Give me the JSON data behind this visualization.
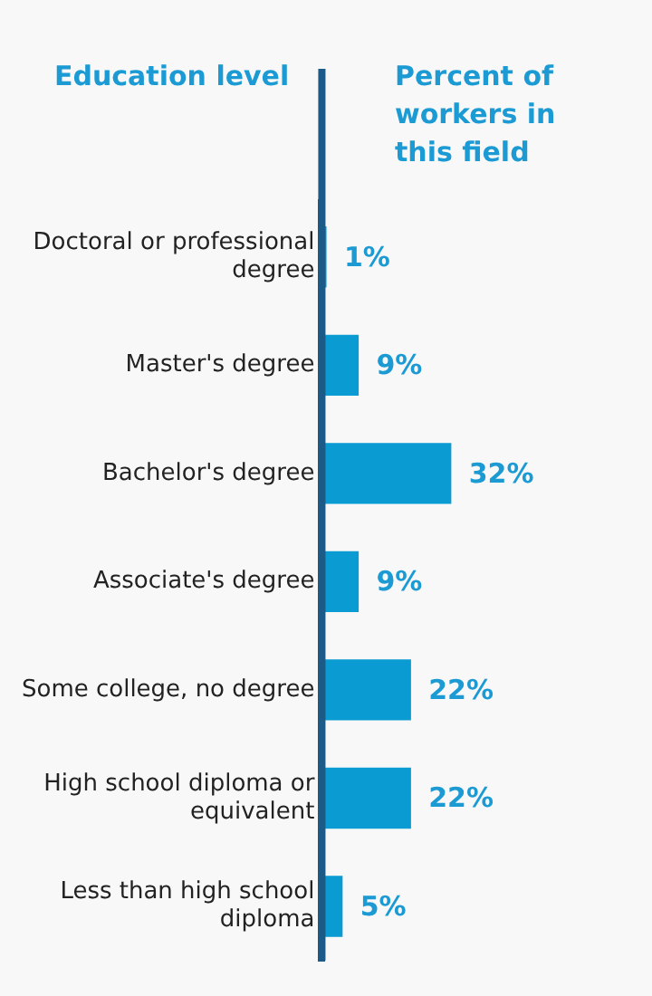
{
  "chart_data": {
    "type": "bar",
    "orientation": "horizontal",
    "xlabel": "Percent of workers in this field",
    "ylabel": "Education level",
    "categories": [
      "Doctoral or professional degree",
      "Master's degree",
      "Bachelor's degree",
      "Associate's degree",
      "Some college, no degree",
      "High school diploma or equivalent",
      "Less than high school diploma"
    ],
    "values": [
      1,
      9,
      32,
      9,
      22,
      22,
      5
    ],
    "color": "#0a9bd2",
    "value_labels": [
      "1%",
      "9%",
      "32%",
      "9%",
      "22%",
      "22%",
      "5%"
    ],
    "grid": false,
    "tick_labels": "y",
    "legend": false
  }
}
